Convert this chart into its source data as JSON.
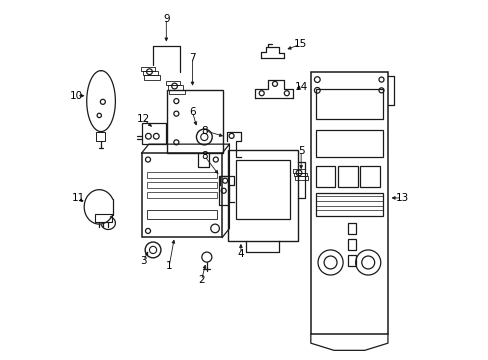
{
  "bg_color": "#ffffff",
  "line_color": "#1a1a1a",
  "text_color": "#000000",
  "figsize": [
    4.89,
    3.6
  ],
  "dpi": 100
}
